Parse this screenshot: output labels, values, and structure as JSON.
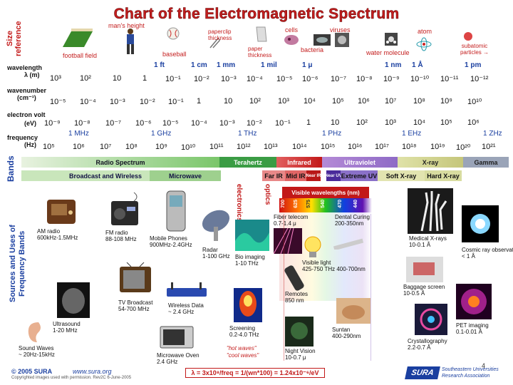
{
  "title": "Chart of the Electromagnetic Spectrum",
  "size_reference": {
    "label": "Size reference",
    "items": [
      "football field",
      "man's height",
      "baseball",
      "paperclip thickness",
      "paper thickness",
      "cells",
      "bacteria",
      "viruses",
      "water molecule",
      "atom",
      "subatomic particles →"
    ],
    "markers": [
      "1 ft",
      "1 cm",
      "1 mm",
      "1 mil",
      "1 μ",
      "1 nm",
      "1 Å",
      "1 pm"
    ]
  },
  "wavelength": {
    "label": "wavelength",
    "unit": "λ (m)",
    "values": [
      "10³",
      "10²",
      "10",
      "1",
      "10⁻¹",
      "10⁻²",
      "10⁻³",
      "10⁻⁴",
      "10⁻⁵",
      "10⁻⁶",
      "10⁻⁷",
      "10⁻⁸",
      "10⁻⁹",
      "10⁻¹⁰",
      "10⁻¹¹",
      "10⁻¹²"
    ]
  },
  "wavenumber": {
    "label": "wavenumber",
    "unit": "(cm⁻¹)",
    "values": [
      "10⁻⁵",
      "10⁻⁴",
      "10⁻³",
      "10⁻²",
      "10⁻¹",
      "1",
      "10",
      "10²",
      "10³",
      "10⁴",
      "10⁵",
      "10⁶",
      "10⁷",
      "10⁸",
      "10⁹",
      "10¹⁰"
    ]
  },
  "electron_volt": {
    "label": "electron volt",
    "unit": "(eV)",
    "values": [
      "10⁻⁹",
      "10⁻⁸",
      "10⁻⁷",
      "10⁻⁶",
      "10⁻⁵",
      "10⁻⁴",
      "10⁻³",
      "10⁻²",
      "10⁻¹",
      "1",
      "10",
      "10²",
      "10³",
      "10⁴",
      "10⁵",
      "10⁶"
    ]
  },
  "frequency": {
    "label": "frequency",
    "unit": "(Hz)",
    "values": [
      "10⁵",
      "10⁶",
      "10⁷",
      "10⁸",
      "10⁹",
      "10¹⁰",
      "10¹¹",
      "10¹²",
      "10¹³",
      "10¹⁴",
      "10¹⁵",
      "10¹⁶",
      "10¹⁷",
      "10¹⁸",
      "10¹⁹",
      "10²⁰",
      "10²¹"
    ],
    "markers": [
      "1 MHz",
      "1 GHz",
      "1 THz",
      "1 PHz",
      "1 EHz",
      "1 ZHz"
    ]
  },
  "bands": {
    "label": "Bands",
    "main": [
      "Radio Spectrum",
      "Terahertz",
      "Infrared",
      "Ultraviolet",
      "X-ray",
      "Gamma"
    ],
    "sub": [
      "Broadcast and Wireless",
      "Microwave",
      "Far IR",
      "Mid IR",
      "Near IR",
      "Near UV",
      "Extreme UV",
      "Soft X-ray",
      "Hard X-ray"
    ]
  },
  "visible": {
    "label": "Visible wavelengths (nm)",
    "ticks": [
      "700",
      "625",
      "575",
      "540",
      "470",
      "440"
    ]
  },
  "side_labels": {
    "electronics": "electronics",
    "optics": "optics"
  },
  "sources_label": "Sources and Uses of Frequency Bands",
  "sources": [
    {
      "name": "AM radio",
      "range": "600kHz-1.5MHz"
    },
    {
      "name": "FM radio",
      "range": "88-108 MHz"
    },
    {
      "name": "Mobile Phones",
      "range": "900MHz-2.4GHz"
    },
    {
      "name": "Radar",
      "range": "1-100 GHz"
    },
    {
      "name": "Bio imaging",
      "range": "1-10 THz"
    },
    {
      "name": "Fiber telecom",
      "range": "0.7-1.4 μ"
    },
    {
      "name": "Dental Curing",
      "range": "200-350nm"
    },
    {
      "name": "Medical X-rays",
      "range": "10-0.1 Å"
    },
    {
      "name": "Visible light",
      "range": "425-750 THz 400-700nm"
    },
    {
      "name": "Cosmic ray observations",
      "range": "< 1 Å"
    },
    {
      "name": "Ultrasound",
      "range": "1-20 MHz"
    },
    {
      "name": "TV Broadcast",
      "range": "54-700 MHz"
    },
    {
      "name": "Wireless Data",
      "range": "~ 2.4 GHz"
    },
    {
      "name": "Remotes",
      "range": "850 nm"
    },
    {
      "name": "Baggage screen",
      "range": "10-0.5 Å"
    },
    {
      "name": "Sound Waves",
      "range": "~ 20Hz-15kHz"
    },
    {
      "name": "Screening",
      "range": "0.2-4.0 THz"
    },
    {
      "name": "Suntan",
      "range": "400-290nm"
    },
    {
      "name": "PET imaging",
      "range": "0.1-0.01 Å"
    },
    {
      "name": "Crystallography",
      "range": "2.2-0.7 Å"
    },
    {
      "name": "Microwave Oven",
      "range": "2.4 GHz"
    },
    {
      "name": "Night Vision",
      "range": "10-0.7 μ"
    }
  ],
  "notes": {
    "hot_waves": "\"hot waves\"",
    "cool_waves": "\"cool waves\""
  },
  "footer": {
    "copyright": "© 2005 SURA",
    "url": "www.sura.org",
    "small": "Copyrighted images used with permission. Rev2C 6-June-2005",
    "formula": "λ = 3x10⁸/freq = 1/(wn*100) = 1.24x10⁻⁶/eV",
    "logo": "SURA",
    "org": "Southeastern Universities Research Association",
    "page": "4"
  },
  "colors": {
    "accent_red": "#c41e1e",
    "label_blue": "#1a3fa0"
  }
}
